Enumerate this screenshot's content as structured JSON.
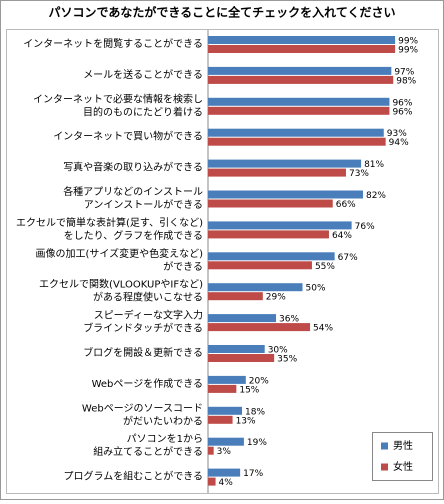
{
  "chart_data": {
    "type": "bar",
    "orientation": "horizontal",
    "title": "パソコンであなたができることに全てチェックを入れてください",
    "categories": [
      [
        "インターネットを閲覧することができる"
      ],
      [
        "メールを送ることができる"
      ],
      [
        "インターネットで必要な情報を検索し",
        "目的のものにたどり着ける"
      ],
      [
        "インターネットで買い物ができる"
      ],
      [
        "写真や音楽の取り込みができる"
      ],
      [
        "各種アプリなどのインストール",
        "アンインストールができる"
      ],
      [
        "エクセルで簡単な表計算(足す、引くなど)",
        "をしたり、グラフを作成できる"
      ],
      [
        "画像の加工(サイズ変更や色変えなど)",
        "ができる"
      ],
      [
        "エクセルで関数(VLOOKUPやIFなど)",
        "がある程度使いこなせる"
      ],
      [
        "スピーディーな文字入力",
        "ブラインドタッチができる"
      ],
      [
        "ブログを開設＆更新できる"
      ],
      [
        "Webページを作成できる"
      ],
      [
        "Webページのソースコード",
        "がだいたいわかる"
      ],
      [
        "パソコンを1から",
        "組み立てることができる"
      ],
      [
        "プログラムを組むことができる"
      ]
    ],
    "series": [
      {
        "name": "男性",
        "color": "#4a7ebb",
        "values": [
          99,
          97,
          96,
          93,
          81,
          82,
          76,
          67,
          50,
          36,
          30,
          20,
          18,
          19,
          17
        ],
        "value_labels": [
          "99%",
          "97%",
          "96%",
          "93%",
          "81%",
          "82%",
          "76%",
          "67%",
          "50%",
          "36%",
          "30%",
          "20%",
          "18%",
          "19%",
          "17%"
        ]
      },
      {
        "name": "女性",
        "color": "#be4b48",
        "values": [
          99,
          98,
          96,
          94,
          73,
          66,
          64,
          55,
          29,
          54,
          35,
          15,
          13,
          3,
          4
        ],
        "value_labels": [
          "99%",
          "98%",
          "96%",
          "94%",
          "73%",
          "66%",
          "64%",
          "55%",
          "29%",
          "54%",
          "35%",
          "15%",
          "13%",
          "3%",
          "4%"
        ]
      }
    ],
    "xlim": [
      0,
      100
    ],
    "legend": "lower right"
  }
}
